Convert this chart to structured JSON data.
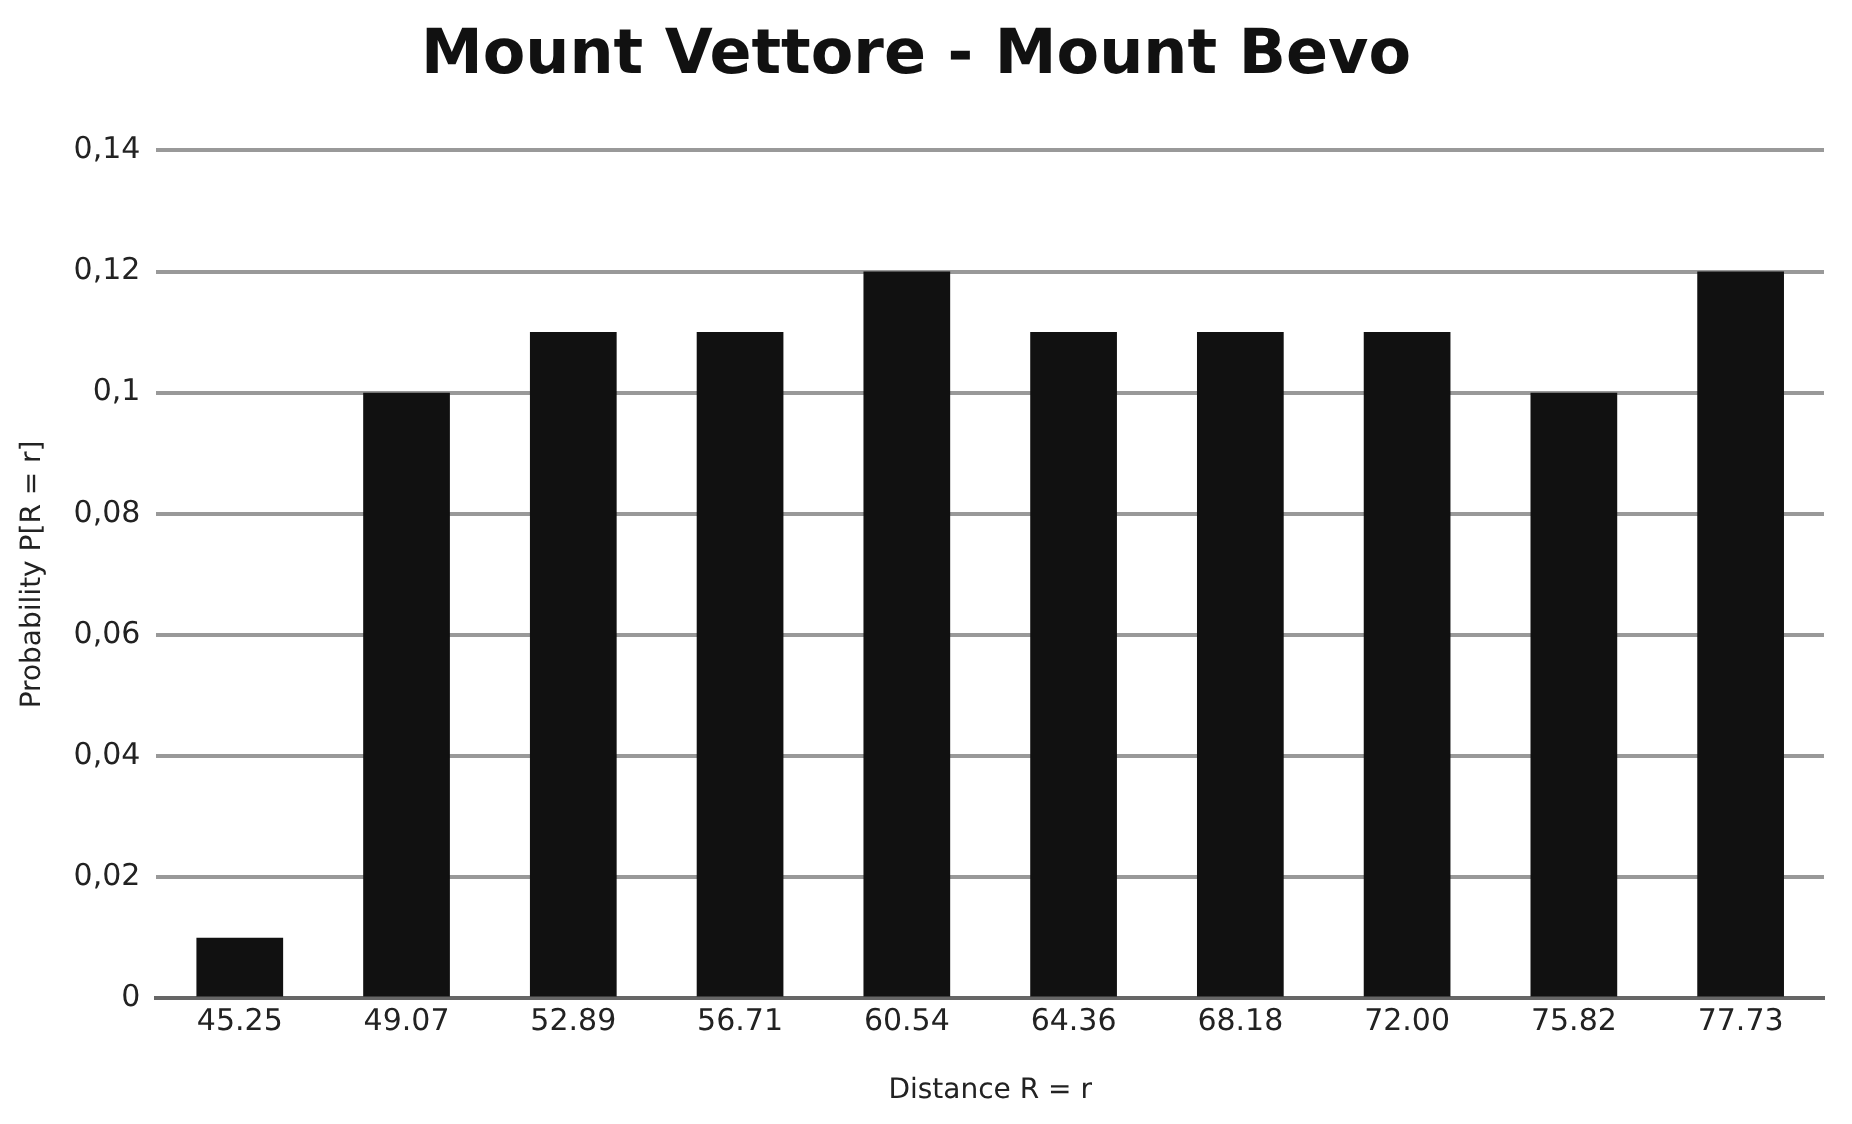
{
  "chart_data": {
    "type": "bar",
    "title": "Mount Vettore - Mount Bevo",
    "xlabel": "Distance R = r",
    "ylabel": "Probability P[R = r]",
    "categories": [
      "45.25",
      "49.07",
      "52.89",
      "56.71",
      "60.54",
      "64.36",
      "68.18",
      "72.00",
      "75.82",
      "77.73"
    ],
    "values": [
      0.01,
      0.1,
      0.11,
      0.11,
      0.12,
      0.11,
      0.11,
      0.11,
      0.1,
      0.12
    ],
    "color": "#111111",
    "ylim": [
      0,
      0.14
    ],
    "yticks": [
      0,
      {
        "value": 0.02,
        "label": "0,02"
      },
      {
        "value": 0.04,
        "label": "0,04"
      },
      {
        "value": 0.06,
        "label": "0,06"
      },
      {
        "value": 0.08,
        "label": "0,08"
      },
      {
        "value": 0.1,
        "label": "0,1"
      },
      {
        "value": 0.12,
        "label": "0,12"
      },
      {
        "value": 0.14,
        "label": "0,14"
      }
    ],
    "grid": "y",
    "legend": false
  }
}
